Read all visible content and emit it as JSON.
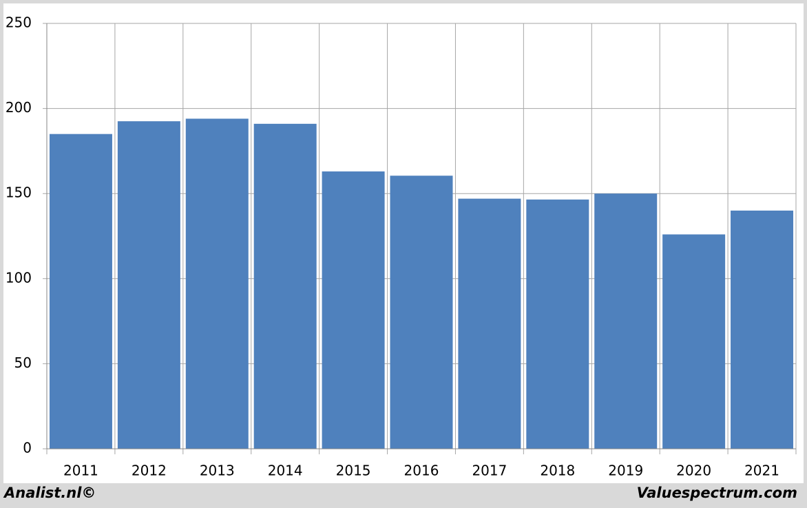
{
  "chart_data": {
    "type": "bar",
    "categories": [
      "2011",
      "2012",
      "2013",
      "2014",
      "2015",
      "2016",
      "2017",
      "2018",
      "2019",
      "2020",
      "2021"
    ],
    "values": [
      185,
      192.5,
      194,
      191,
      163,
      160.5,
      147,
      146.5,
      150,
      126,
      140
    ],
    "color": "#4f81bd",
    "ylim": [
      0,
      250
    ],
    "yticks": [
      0,
      50,
      100,
      150,
      200,
      250
    ],
    "grid": true,
    "footer_left": "Analist.nl©",
    "footer_right": "Valuespectrum.com"
  }
}
